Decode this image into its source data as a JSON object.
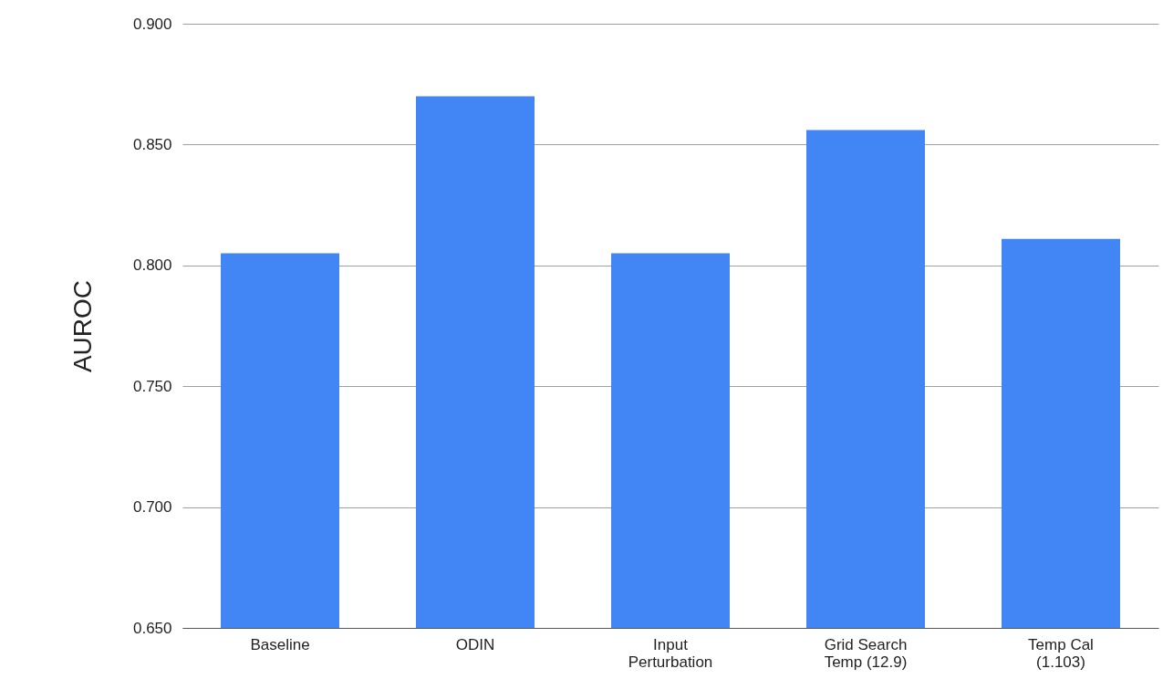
{
  "chart_data": {
    "type": "bar",
    "ylabel": "AUROC",
    "categories": [
      "Baseline",
      "ODIN",
      "Input\nPerturbation",
      "Grid Search\nTemp (12.9)",
      "Temp Cal\n(1.103)"
    ],
    "values": [
      0.805,
      0.87,
      0.805,
      0.856,
      0.811
    ],
    "color": "#4285f4",
    "ylim": [
      0.65,
      0.9
    ],
    "yticks": [
      {
        "value": 0.65,
        "label": "0.650"
      },
      {
        "value": 0.7,
        "label": "0.700"
      },
      {
        "value": 0.75,
        "label": "0.750"
      },
      {
        "value": 0.8,
        "label": "0.800"
      },
      {
        "value": 0.85,
        "label": "0.850"
      },
      {
        "value": 0.9,
        "label": "0.900"
      }
    ],
    "grid": "y"
  }
}
